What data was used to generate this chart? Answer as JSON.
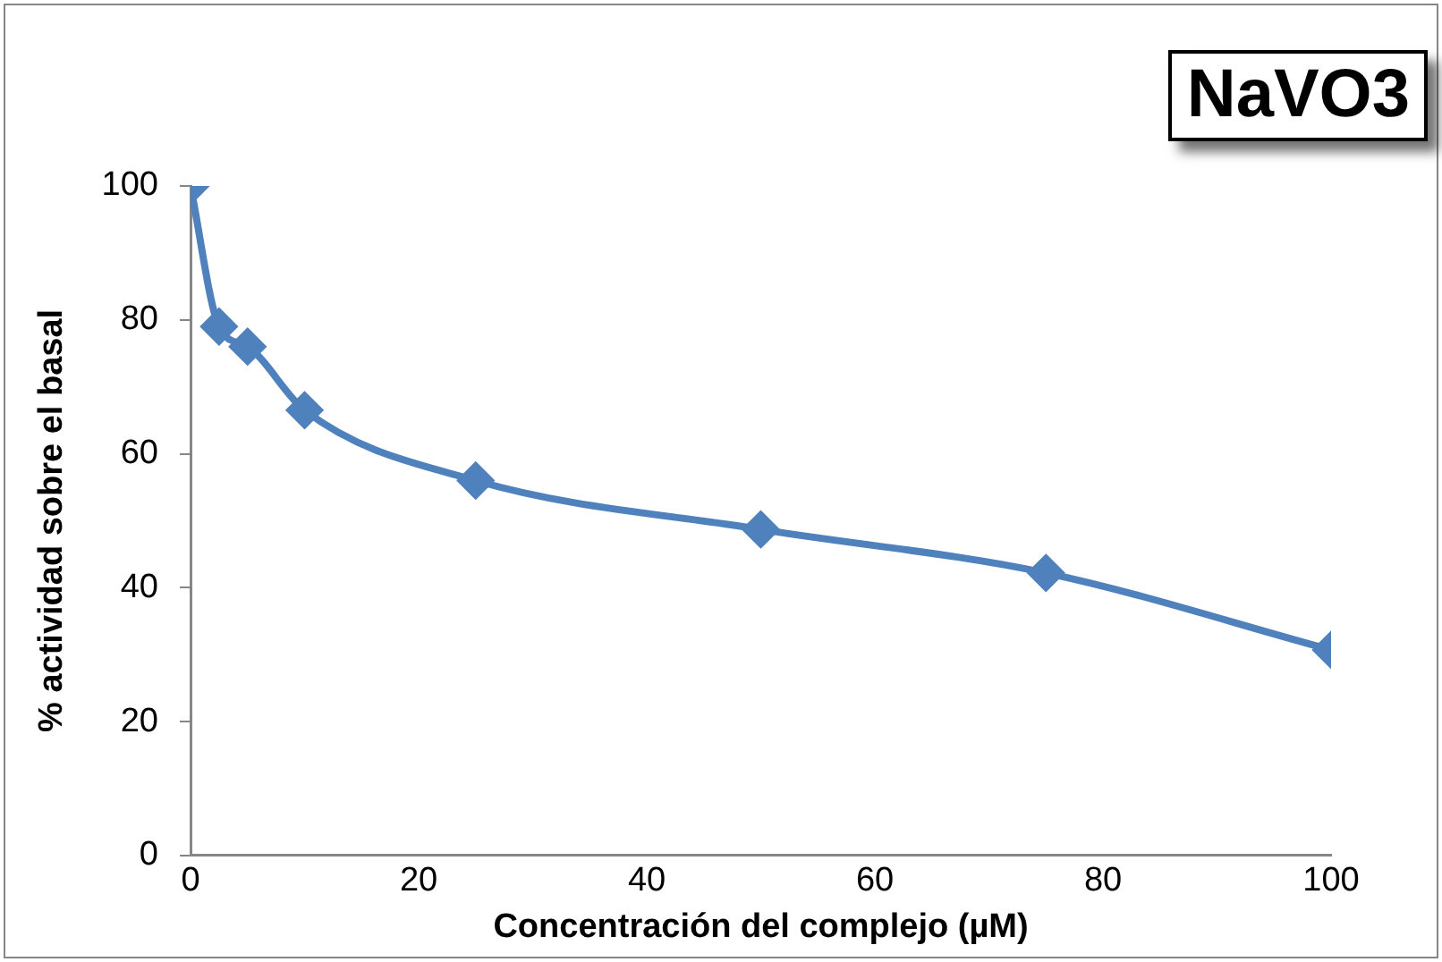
{
  "chart_data": {
    "type": "line",
    "title": "NaVO3",
    "xlabel": "Concentración del complejo (µM)",
    "ylabel": "% actividad sobre el basal",
    "x": [
      0,
      2.5,
      5,
      10,
      25,
      50,
      75,
      100
    ],
    "series": [
      {
        "color": "#4f81bd",
        "values": [
          100,
          79,
          76,
          66.5,
          56,
          48.7,
          42.2,
          30.7
        ]
      }
    ],
    "xlim": [
      0,
      100
    ],
    "xticks": [
      0,
      20,
      40,
      60,
      80,
      100
    ],
    "ylim": [
      0,
      100
    ],
    "yticks": [
      0,
      20,
      40,
      60,
      80,
      100
    ],
    "grid": false,
    "legend": false,
    "marker": "diamond",
    "line_style": "solid"
  }
}
